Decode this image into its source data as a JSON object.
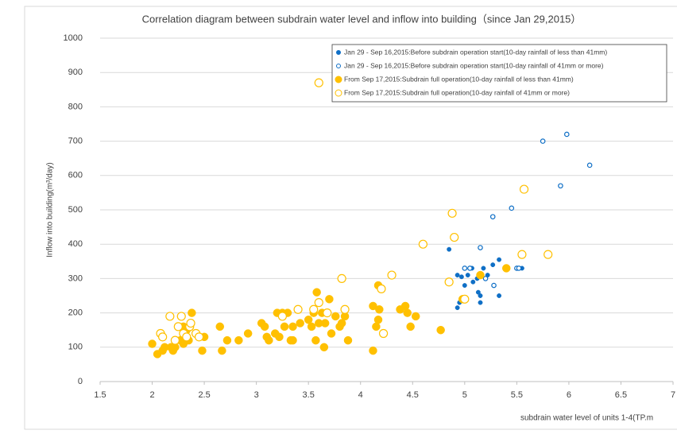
{
  "chart_data": {
    "type": "scatter",
    "title": "Correlation diagram between subdrain water level and inflow into building（since Jan 29,2015）",
    "x_label": "subdrain water level of units 1-4(TP.m",
    "y_label": "Inflow into building(m³/day)",
    "xlim": [
      1.5,
      7
    ],
    "xticks": [
      1.5,
      2,
      2.5,
      3,
      3.5,
      4,
      4.5,
      5,
      5.5,
      6,
      6.5,
      7
    ],
    "ylim": [
      0,
      1000
    ],
    "yticks": [
      0,
      100,
      200,
      300,
      400,
      500,
      600,
      700,
      800,
      900,
      1000
    ],
    "grid": true,
    "legend": "upper right",
    "series": [
      {
        "name": "Jan 29 - Sep 16,2015:Before subdrain operation start(10-day rainfall of less than 41mm)",
        "color": "#0f6fc6",
        "marker": "filled",
        "size": "small",
        "x": [
          4.85,
          4.93,
          4.95,
          4.93,
          4.97,
          5.0,
          5.03,
          5.07,
          5.08,
          5.12,
          5.13,
          5.15,
          5.15,
          5.18,
          5.2,
          5.22,
          5.27,
          5.33,
          5.33,
          5.55
        ],
        "values": [
          385,
          215,
          230,
          310,
          305,
          280,
          310,
          330,
          290,
          300,
          260,
          250,
          230,
          330,
          300,
          310,
          340,
          355,
          250,
          330
        ]
      },
      {
        "name": "Jan 29 - Sep 16,2015:Before subdrain operation start(10-day rainfall of 41mm or more)",
        "color": "#0f6fc6",
        "marker": "open",
        "size": "small",
        "x": [
          5.0,
          5.05,
          5.15,
          5.2,
          5.27,
          5.28,
          5.45,
          5.5,
          5.52,
          5.75,
          5.92,
          5.98,
          6.2
        ],
        "values": [
          330,
          330,
          390,
          300,
          480,
          280,
          505,
          330,
          330,
          700,
          570,
          720,
          630
        ]
      },
      {
        "name": "From Sep 17,2015:Subdrain full operation(10-day rainfall of less than 41mm)",
        "color": "#ffc000",
        "marker": "filled",
        "size": "large",
        "x": [
          2.0,
          2.05,
          2.1,
          2.12,
          2.18,
          2.2,
          2.22,
          2.27,
          2.3,
          2.3,
          2.33,
          2.35,
          2.38,
          2.48,
          2.5,
          2.65,
          2.67,
          2.72,
          2.83,
          2.92,
          3.05,
          3.08,
          3.1,
          3.12,
          3.18,
          3.2,
          3.22,
          3.25,
          3.27,
          3.3,
          3.33,
          3.35,
          3.35,
          3.42,
          3.5,
          3.53,
          3.55,
          3.57,
          3.58,
          3.6,
          3.63,
          3.65,
          3.66,
          3.7,
          3.72,
          3.76,
          3.8,
          3.82,
          3.85,
          3.88,
          4.12,
          4.12,
          4.15,
          4.17,
          4.17,
          4.18,
          4.38,
          4.43,
          4.45,
          4.48,
          4.53,
          4.77,
          4.98,
          5.15,
          5.4
        ],
        "values": [
          110,
          80,
          90,
          100,
          100,
          90,
          100,
          120,
          160,
          110,
          150,
          120,
          200,
          90,
          130,
          160,
          90,
          120,
          120,
          140,
          170,
          160,
          130,
          120,
          140,
          200,
          130,
          200,
          160,
          200,
          120,
          160,
          120,
          170,
          180,
          160,
          200,
          120,
          260,
          170,
          200,
          100,
          170,
          240,
          140,
          190,
          160,
          170,
          190,
          120,
          90,
          220,
          160,
          280,
          180,
          210,
          210,
          220,
          200,
          160,
          190,
          150,
          240,
          310,
          330
        ]
      },
      {
        "name": "From Sep 17,2015:Subdrain full operation(10-day rainfall of 41mm or more)",
        "color": "#ffc000",
        "marker": "open",
        "size": "large",
        "x": [
          2.08,
          2.1,
          2.17,
          2.22,
          2.25,
          2.28,
          2.3,
          2.33,
          2.36,
          2.37,
          2.42,
          2.45,
          3.25,
          3.4,
          3.55,
          3.6,
          3.6,
          3.68,
          3.82,
          3.85,
          4.2,
          4.22,
          4.3,
          4.6,
          4.85,
          4.88,
          4.9,
          5.57,
          5.55,
          5.8,
          5.0
        ],
        "values": [
          140,
          130,
          190,
          120,
          160,
          190,
          140,
          130,
          160,
          170,
          140,
          130,
          190,
          210,
          210,
          870,
          230,
          200,
          300,
          210,
          270,
          140,
          310,
          400,
          290,
          490,
          420,
          560,
          370,
          370,
          240
        ]
      }
    ]
  }
}
